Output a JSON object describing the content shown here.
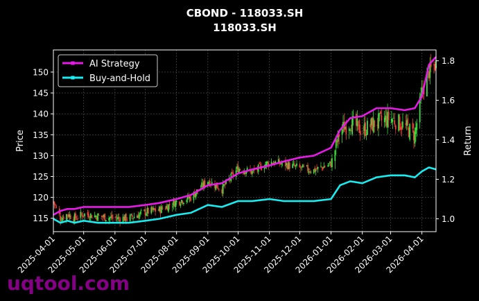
{
  "chart_data": {
    "type": "line",
    "title": "CBOND - 118033.SH",
    "subtitle": "118033.SH",
    "xlabel": "",
    "ylabel": "Price",
    "y2label": "Return",
    "x_ticks": [
      "2025-04-01",
      "2025-05-01",
      "2025-06-01",
      "2025-07-01",
      "2025-08-01",
      "2025-09-01",
      "2025-10-01",
      "2025-11-01",
      "2025-12-01",
      "2026-01-01",
      "2026-02-01",
      "2026-03-01",
      "2026-04-01"
    ],
    "y_ticks": [
      115,
      120,
      125,
      130,
      135,
      140,
      145,
      150
    ],
    "y2_ticks": [
      "1.0",
      "1.2",
      "1.4",
      "1.6",
      "1.8"
    ],
    "ylim": [
      111.8,
      155.3
    ],
    "y2lim": [
      0.935,
      1.855
    ],
    "xlim": [
      "2025-04-01",
      "2026-04-15"
    ],
    "grid": true,
    "legend": "top-left",
    "colors": {
      "background": "#000000",
      "ai": "#e81ae8",
      "bh": "#19ecf0",
      "up": "#3ddc3d",
      "down": "#e8443a",
      "grid": "#555555"
    },
    "series": [
      {
        "name": "AI Strategy",
        "axis": "return",
        "x": [
          "2025-04-01",
          "2025-04-08",
          "2025-04-15",
          "2025-04-22",
          "2025-05-01",
          "2025-05-15",
          "2025-06-01",
          "2025-06-15",
          "2025-07-01",
          "2025-07-15",
          "2025-08-01",
          "2025-08-15",
          "2025-09-01",
          "2025-09-15",
          "2025-10-01",
          "2025-10-15",
          "2025-11-01",
          "2025-11-15",
          "2025-12-01",
          "2025-12-15",
          "2026-01-01",
          "2026-01-10",
          "2026-01-20",
          "2026-02-01",
          "2026-02-15",
          "2026-03-01",
          "2026-03-15",
          "2026-03-25",
          "2026-04-01",
          "2026-04-08",
          "2026-04-15"
        ],
        "values": [
          1.02,
          1.04,
          1.05,
          1.05,
          1.06,
          1.06,
          1.06,
          1.06,
          1.07,
          1.08,
          1.1,
          1.12,
          1.17,
          1.18,
          1.23,
          1.25,
          1.27,
          1.29,
          1.31,
          1.32,
          1.36,
          1.45,
          1.51,
          1.52,
          1.56,
          1.56,
          1.55,
          1.56,
          1.62,
          1.78,
          1.82
        ]
      },
      {
        "name": "Buy-and-Hold",
        "axis": "return",
        "x": [
          "2025-04-01",
          "2025-04-08",
          "2025-04-15",
          "2025-04-22",
          "2025-05-01",
          "2025-05-15",
          "2025-06-01",
          "2025-06-15",
          "2025-07-01",
          "2025-07-15",
          "2025-08-01",
          "2025-08-15",
          "2025-09-01",
          "2025-09-15",
          "2025-10-01",
          "2025-10-15",
          "2025-11-01",
          "2025-11-15",
          "2025-12-01",
          "2025-12-15",
          "2026-01-01",
          "2026-01-10",
          "2026-01-20",
          "2026-02-01",
          "2026-02-15",
          "2026-03-01",
          "2026-03-15",
          "2026-03-25",
          "2026-04-01",
          "2026-04-08",
          "2026-04-15"
        ],
        "values": [
          1.0,
          0.98,
          0.99,
          0.98,
          0.99,
          0.98,
          0.98,
          0.98,
          0.99,
          1.0,
          1.02,
          1.03,
          1.07,
          1.06,
          1.09,
          1.09,
          1.1,
          1.09,
          1.09,
          1.09,
          1.1,
          1.17,
          1.19,
          1.18,
          1.21,
          1.22,
          1.22,
          1.21,
          1.24,
          1.26,
          1.25
        ]
      },
      {
        "name": "",
        "axis": "price",
        "x": [
          "2025-04-01",
          "2025-04-08",
          "2025-04-15",
          "2025-04-22",
          "2025-05-01",
          "2025-05-15",
          "2025-06-01",
          "2025-06-15",
          "2025-07-01",
          "2025-07-15",
          "2025-08-01",
          "2025-08-15",
          "2025-09-01",
          "2025-09-15",
          "2025-10-01",
          "2025-10-15",
          "2025-11-01",
          "2025-11-15",
          "2025-12-01",
          "2025-12-15",
          "2026-01-01",
          "2026-01-10",
          "2026-01-20",
          "2026-02-01",
          "2026-02-15",
          "2026-03-01",
          "2026-03-15",
          "2026-03-25",
          "2026-04-01",
          "2026-04-08",
          "2026-04-15"
        ],
        "values": [
          119,
          115,
          116,
          115,
          116,
          115.5,
          115,
          115,
          116.5,
          117,
          119,
          120,
          124,
          122,
          127,
          126,
          128.5,
          128,
          127,
          126.5,
          128,
          136,
          138,
          136,
          138,
          139,
          137,
          135,
          145,
          150,
          152
        ]
      }
    ]
  },
  "watermark": "uqtool.com"
}
